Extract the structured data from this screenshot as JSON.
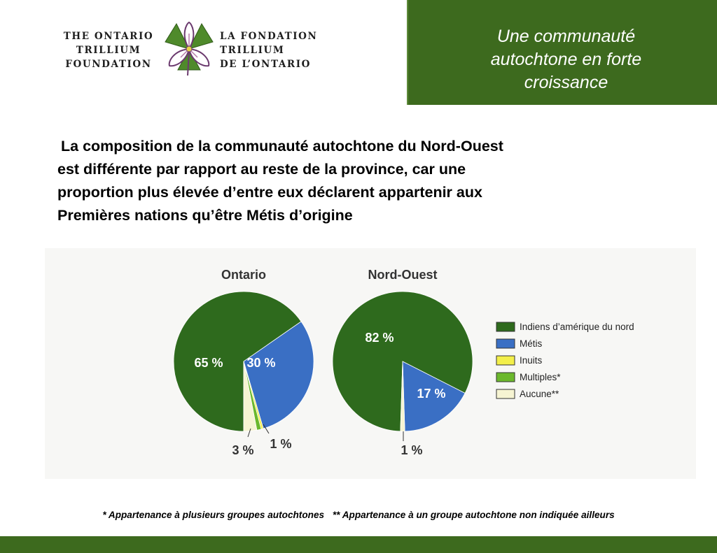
{
  "logo": {
    "en_lines": [
      "The Ontario",
      "Trillium",
      "Foundation"
    ],
    "fr_lines": [
      "La Fondation",
      "Trillium",
      "de l’Ontario"
    ],
    "icon": "trillium-flower-icon"
  },
  "title_lines": [
    "Une communauté",
    "autochtone en forte",
    "croissance"
  ],
  "body_lines": [
    "La composition de la communauté autochtone du Nord-Ouest",
    "est  différente par rapport au reste de la province, car une",
    "proportion plus élevée d’entre eux déclarent appartenir aux",
    "Premières nations qu’être Métis d’origine"
  ],
  "chart_data": {
    "type": "pie",
    "categories": [
      "Indiens d’amérique du nord",
      "Métis",
      "Inuits",
      "Multiples*",
      "Aucune**"
    ],
    "colors": [
      "#2e6a1d",
      "#3a6fc4",
      "#f3ef4a",
      "#6bb82c",
      "#f6f4d2"
    ],
    "legend": [
      "Indiens d’amérique du nord",
      "Métis",
      "Inuits",
      "Multiples*",
      "Aucune**"
    ],
    "legend_position": "right",
    "pies": [
      {
        "title": "Ontario",
        "values": [
          65,
          30,
          0.5,
          1,
          3
        ],
        "labels": [
          "65 %",
          "30 %",
          null,
          "1 %",
          "3 %"
        ]
      },
      {
        "title": "Nord-Ouest",
        "values": [
          82,
          17,
          0,
          0,
          1
        ],
        "labels": [
          "82 %",
          "17 %",
          null,
          null,
          "1 %"
        ]
      }
    ]
  },
  "footnotes": [
    "* Appartenance à plusieurs groupes autochtones",
    "** Appartenance à un groupe autochtone non indiquée ailleurs"
  ],
  "colors": {
    "brand_green": "#3d6a1e",
    "title_text": "#ffffff"
  }
}
